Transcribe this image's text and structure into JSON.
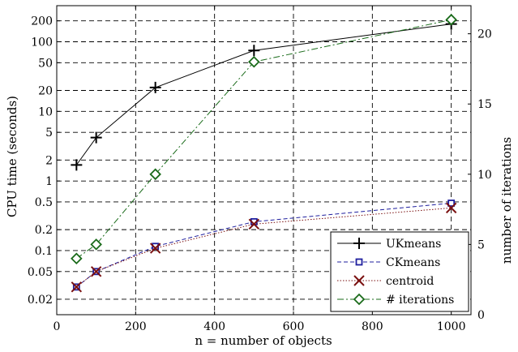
{
  "chart_data": {
    "type": "line",
    "xlabel": "n = number of objects",
    "ylabel": "CPU time (seconds)",
    "y2label": "number of iterations",
    "xlim": [
      0,
      1050
    ],
    "ylim": [
      0.012,
      330
    ],
    "y_scale": "log",
    "y2lim": [
      0,
      22
    ],
    "grid": true,
    "legend_position": "bottom-right",
    "x_ticks": [
      "0",
      "200",
      "400",
      "600",
      "800",
      "1000"
    ],
    "x_tick_values": [
      0,
      200,
      400,
      600,
      800,
      1000
    ],
    "y_ticks": [
      "0.02",
      "0.05",
      "0.1",
      "0.2",
      "0.5",
      "1",
      "2",
      "5",
      "10",
      "20",
      "50",
      "100",
      "200"
    ],
    "y_tick_values": [
      0.02,
      0.05,
      0.1,
      0.2,
      0.5,
      1,
      2,
      5,
      10,
      20,
      50,
      100,
      200
    ],
    "y2_ticks": [
      "0",
      "5",
      "10",
      "15",
      "20"
    ],
    "y2_tick_values": [
      0,
      5,
      10,
      15,
      20
    ],
    "series": [
      {
        "name": "UKmeans",
        "axis": "left",
        "color": "#000000",
        "dash": "",
        "marker": "plus",
        "x": [
          50,
          100,
          250,
          500,
          1000
        ],
        "y": [
          1.7,
          4.2,
          22,
          75,
          180
        ]
      },
      {
        "name": "CKmeans",
        "axis": "left",
        "color": "#1f1f9e",
        "dash": "5,3",
        "marker": "square",
        "x": [
          50,
          100,
          250,
          500,
          1000
        ],
        "y": [
          0.03,
          0.05,
          0.115,
          0.26,
          0.48
        ]
      },
      {
        "name": "centroid",
        "axis": "left",
        "color": "#7a1010",
        "dash": "1.5,2",
        "marker": "x",
        "x": [
          50,
          100,
          250,
          500,
          1000
        ],
        "y": [
          0.03,
          0.05,
          0.108,
          0.24,
          0.41
        ]
      },
      {
        "name": "# iterations",
        "axis": "right",
        "color": "#1a6b1a",
        "dash": "8,3,2,3",
        "marker": "diamond",
        "x": [
          50,
          100,
          250,
          500,
          1000
        ],
        "y": [
          4,
          5,
          10,
          18,
          21
        ]
      }
    ]
  }
}
